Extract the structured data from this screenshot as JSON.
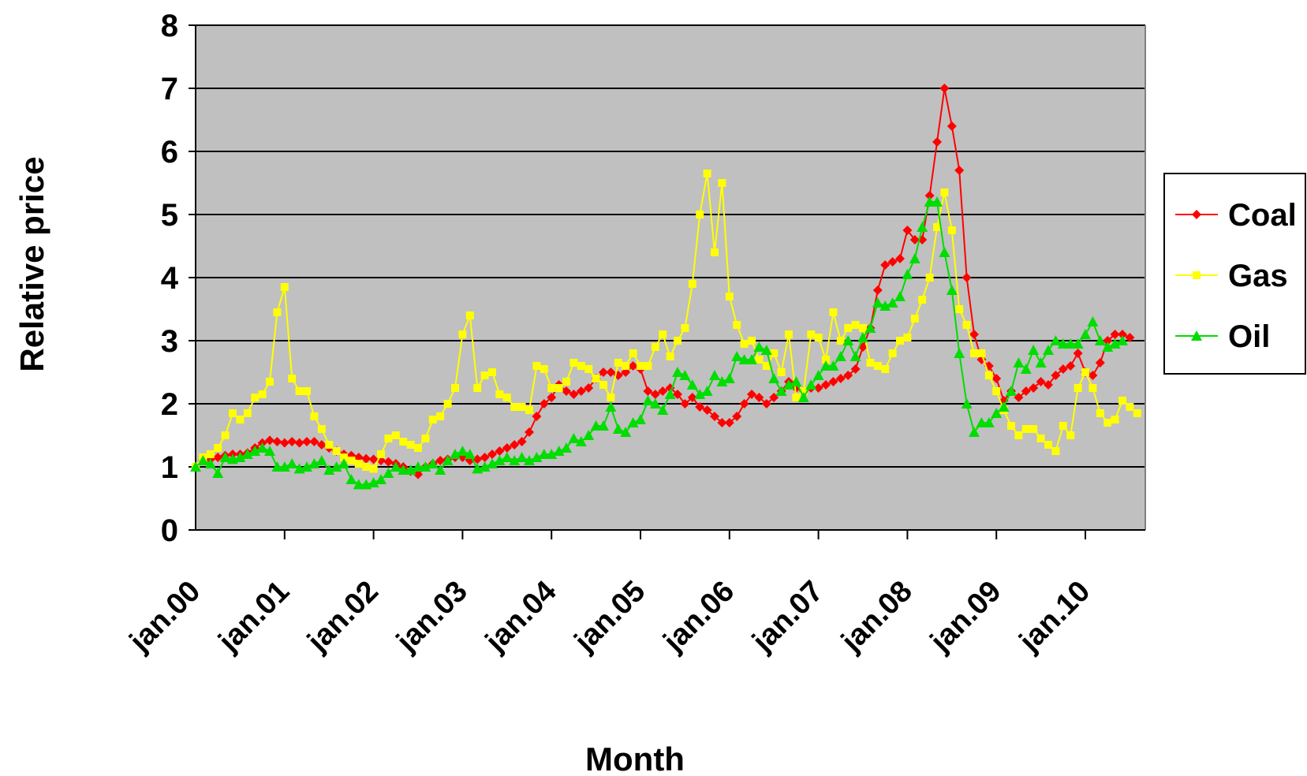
{
  "chart_data": {
    "type": "line",
    "xlabel": "Month",
    "ylabel": "Relative price",
    "ylim": [
      0,
      8
    ],
    "yticks": [
      "0",
      "1",
      "2",
      "3",
      "4",
      "5",
      "6",
      "7",
      "8"
    ],
    "xtick_labels": [
      "jan.00",
      "jan.01",
      "jan.02",
      "jan.03",
      "jan.04",
      "jan.05",
      "jan.06",
      "jan.07",
      "jan.08",
      "jan.09",
      "jan.10"
    ],
    "x_start": "jan.00",
    "x_unit": "month",
    "grid": "horizontal",
    "plot_background": "#c0c0c0",
    "legend_position": "right",
    "series": [
      {
        "name": "Coal",
        "color": "#ff0000",
        "marker": "diamond",
        "values": [
          1.0,
          1.1,
          1.12,
          1.15,
          1.18,
          1.2,
          1.2,
          1.22,
          1.3,
          1.38,
          1.42,
          1.4,
          1.38,
          1.4,
          1.38,
          1.4,
          1.4,
          1.35,
          1.3,
          1.25,
          1.2,
          1.18,
          1.15,
          1.13,
          1.12,
          1.1,
          1.08,
          1.05,
          1.0,
          0.93,
          0.88,
          1.0,
          1.05,
          1.1,
          1.12,
          1.15,
          1.15,
          1.1,
          1.12,
          1.15,
          1.2,
          1.25,
          1.3,
          1.35,
          1.4,
          1.55,
          1.8,
          2.0,
          2.1,
          2.3,
          2.2,
          2.15,
          2.2,
          2.25,
          2.4,
          2.5,
          2.5,
          2.45,
          2.5,
          2.6,
          2.55,
          2.2,
          2.15,
          2.2,
          2.25,
          2.15,
          2.0,
          2.1,
          1.95,
          1.9,
          1.8,
          1.7,
          1.7,
          1.8,
          2.0,
          2.15,
          2.1,
          2.0,
          2.1,
          2.2,
          2.35,
          2.25,
          2.2,
          2.25,
          2.25,
          2.3,
          2.35,
          2.4,
          2.45,
          2.55,
          2.9,
          3.2,
          3.8,
          4.2,
          4.25,
          4.3,
          4.75,
          4.6,
          4.6,
          5.3,
          6.15,
          7.0,
          6.4,
          5.7,
          4.0,
          3.1,
          2.7,
          2.6,
          2.4,
          2.05,
          2.2,
          2.1,
          2.2,
          2.25,
          2.35,
          2.3,
          2.45,
          2.55,
          2.6,
          2.8,
          2.5,
          2.45,
          2.65,
          3.0,
          3.1,
          3.1,
          3.05
        ]
      },
      {
        "name": "Gas",
        "color": "#ffff00",
        "marker": "square",
        "values": [
          1.0,
          1.15,
          1.2,
          1.3,
          1.5,
          1.85,
          1.75,
          1.85,
          2.1,
          2.15,
          2.35,
          3.45,
          3.85,
          2.4,
          2.2,
          2.2,
          1.8,
          1.6,
          1.35,
          1.25,
          1.15,
          1.1,
          1.05,
          1.0,
          0.97,
          1.2,
          1.45,
          1.5,
          1.4,
          1.35,
          1.3,
          1.45,
          1.75,
          1.8,
          2.0,
          2.25,
          3.1,
          3.4,
          2.25,
          2.45,
          2.5,
          2.15,
          2.1,
          1.95,
          1.95,
          1.9,
          2.6,
          2.55,
          2.25,
          2.25,
          2.35,
          2.65,
          2.6,
          2.55,
          2.4,
          2.3,
          2.1,
          2.65,
          2.6,
          2.8,
          2.6,
          2.6,
          2.9,
          3.1,
          2.75,
          3.0,
          3.2,
          3.9,
          5.0,
          5.65,
          4.4,
          5.5,
          3.7,
          3.25,
          2.95,
          3.0,
          2.7,
          2.6,
          2.8,
          2.5,
          3.1,
          2.1,
          2.2,
          3.1,
          3.05,
          2.7,
          3.45,
          3.0,
          3.2,
          3.25,
          3.2,
          2.65,
          2.6,
          2.55,
          2.8,
          3.0,
          3.05,
          3.35,
          3.65,
          4.0,
          4.8,
          5.35,
          4.75,
          3.5,
          3.25,
          2.8,
          2.8,
          2.45,
          2.2,
          1.9,
          1.65,
          1.5,
          1.6,
          1.6,
          1.45,
          1.35,
          1.25,
          1.65,
          1.5,
          2.25,
          2.5,
          2.25,
          1.85,
          1.7,
          1.75,
          2.05,
          1.95,
          1.85
        ]
      },
      {
        "name": "Oil",
        "color": "#00dd00",
        "marker": "triangle",
        "values": [
          1.0,
          1.1,
          1.05,
          0.9,
          1.15,
          1.12,
          1.15,
          1.2,
          1.25,
          1.3,
          1.25,
          1.0,
          1.0,
          1.05,
          0.97,
          1.0,
          1.05,
          1.1,
          0.95,
          1.0,
          1.05,
          0.8,
          0.72,
          0.72,
          0.75,
          0.8,
          0.9,
          1.0,
          0.95,
          0.95,
          1.0,
          1.0,
          1.05,
          0.95,
          1.1,
          1.2,
          1.25,
          1.2,
          0.97,
          1.0,
          1.05,
          1.1,
          1.15,
          1.1,
          1.15,
          1.1,
          1.15,
          1.2,
          1.2,
          1.25,
          1.3,
          1.45,
          1.4,
          1.5,
          1.65,
          1.65,
          1.95,
          1.6,
          1.55,
          1.7,
          1.75,
          2.05,
          2.0,
          1.9,
          2.15,
          2.5,
          2.45,
          2.3,
          2.15,
          2.2,
          2.45,
          2.35,
          2.4,
          2.75,
          2.7,
          2.7,
          2.9,
          2.85,
          2.4,
          2.2,
          2.3,
          2.35,
          2.1,
          2.3,
          2.45,
          2.6,
          2.6,
          2.75,
          3.0,
          2.75,
          3.05,
          3.2,
          3.6,
          3.55,
          3.6,
          3.7,
          4.05,
          4.3,
          4.8,
          5.2,
          5.2,
          4.4,
          3.8,
          2.8,
          2.0,
          1.55,
          1.7,
          1.7,
          1.85,
          1.95,
          2.2,
          2.65,
          2.55,
          2.85,
          2.65,
          2.85,
          3.0,
          2.95,
          2.95,
          2.95,
          3.1,
          3.3,
          3.0,
          2.9,
          2.95,
          3.0
        ]
      }
    ]
  }
}
